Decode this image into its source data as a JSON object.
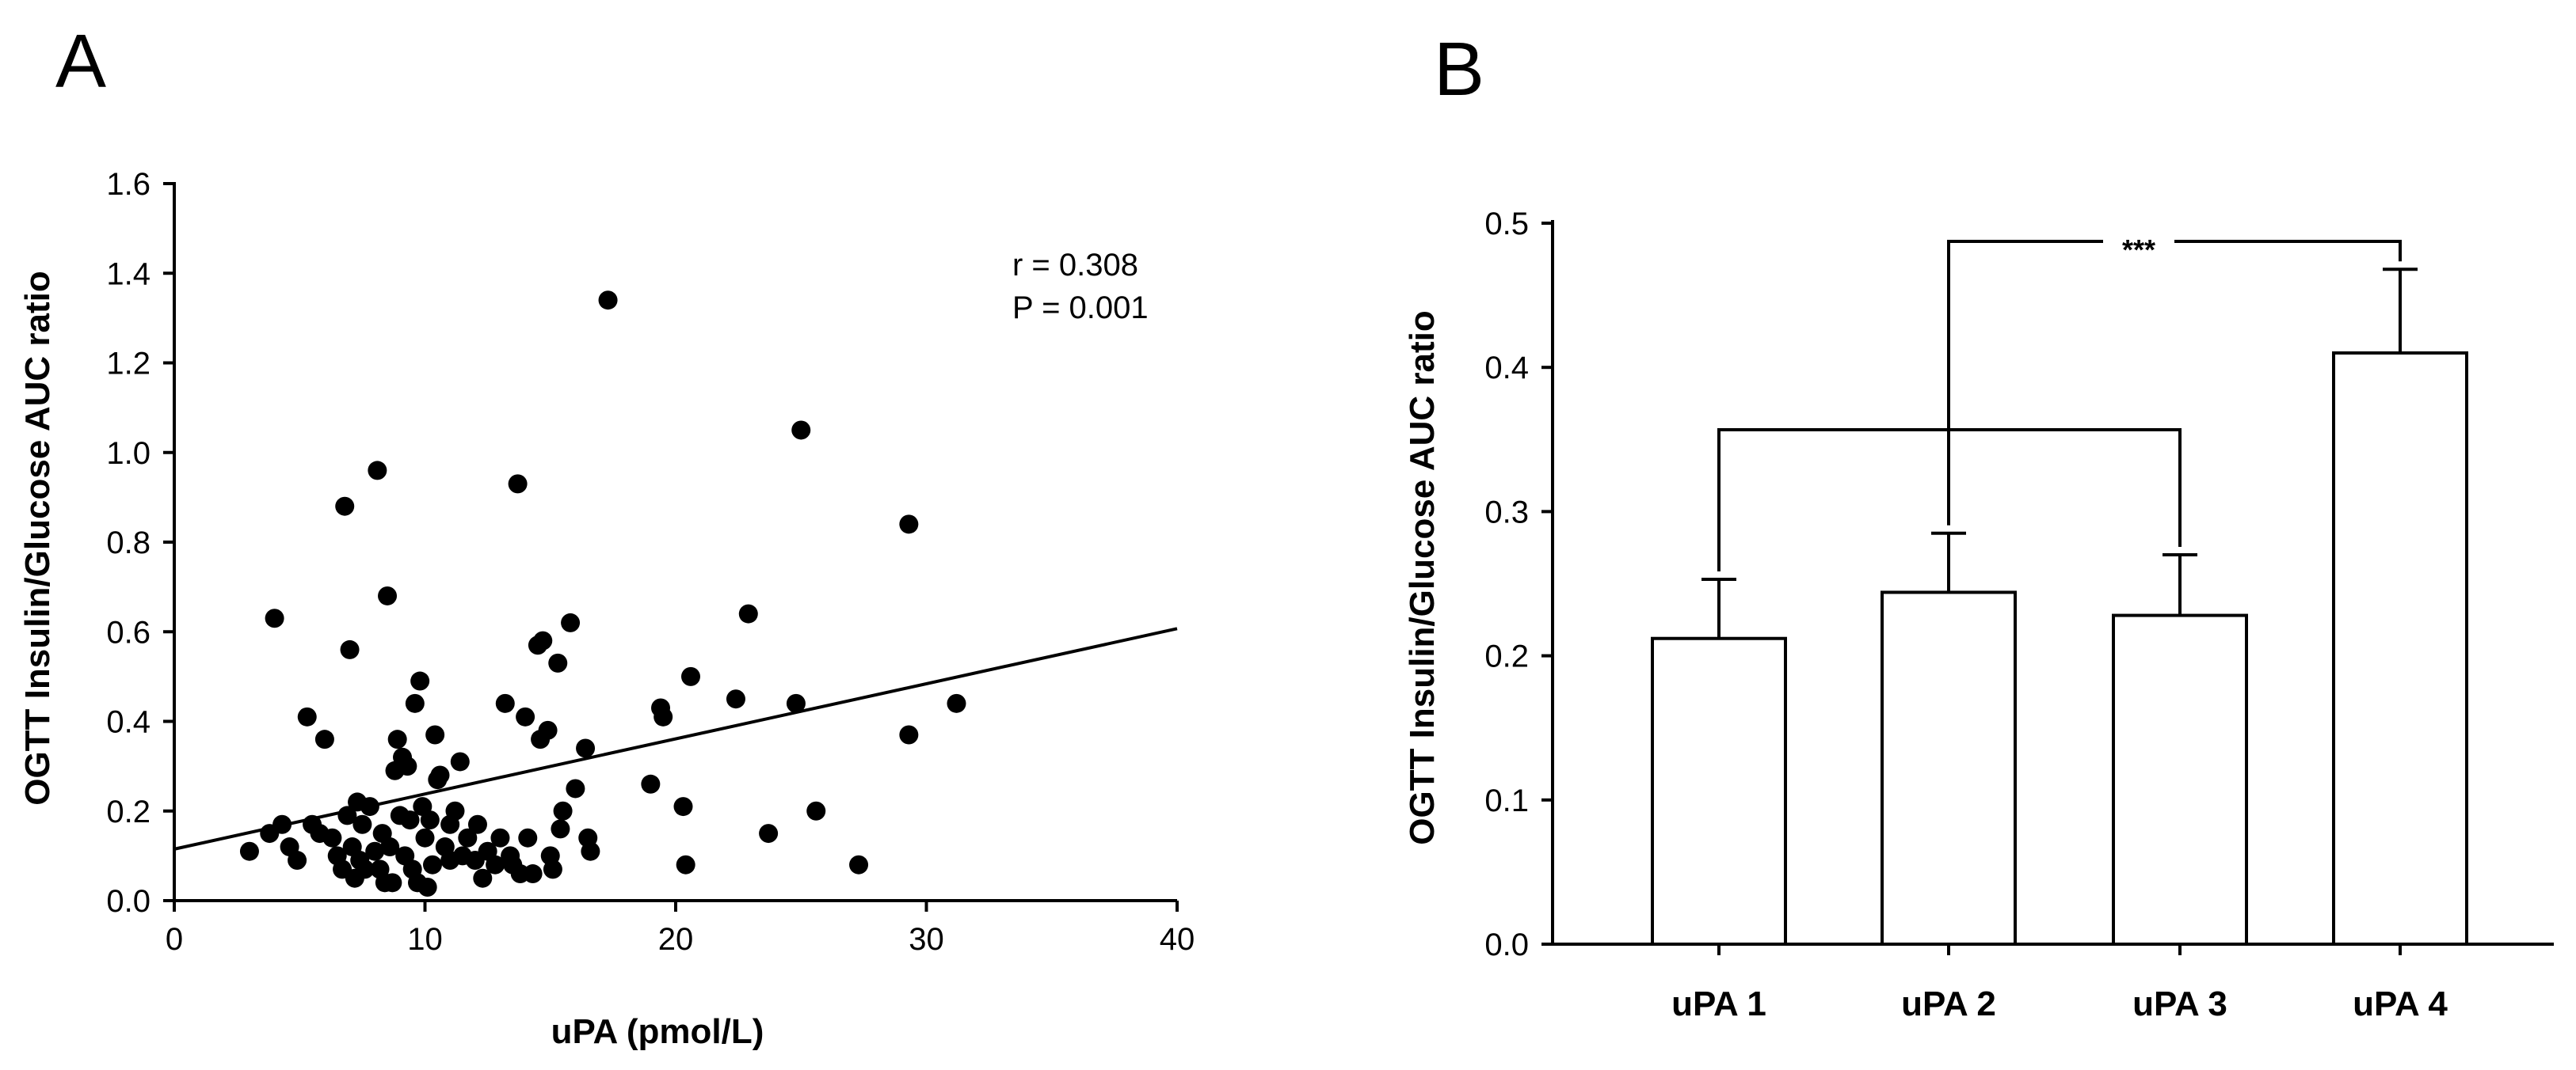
{
  "chart_data": [
    {
      "type": "scatter",
      "panel_label": "A",
      "xlabel": "uPA (pmol/L)",
      "ylabel": "OGTT Insulin/Glucose AUC ratio",
      "xlim": [
        0,
        40
      ],
      "ylim": [
        0,
        1.6
      ],
      "xticks": [
        "0",
        "10",
        "20",
        "30",
        "40"
      ],
      "yticks": [
        "0.0",
        "0.2",
        "0.4",
        "0.6",
        "0.8",
        "1.0",
        "1.2",
        "1.4",
        "1.6"
      ],
      "annotation_r": "r = 0.308",
      "annotation_p": "P = 0.001",
      "fit_line": {
        "intercept": 0.115,
        "slope": 0.0123
      },
      "points": [
        [
          3,
          0.11
        ],
        [
          3.8,
          0.15
        ],
        [
          4,
          0.63
        ],
        [
          4.3,
          0.17
        ],
        [
          4.6,
          0.12
        ],
        [
          4.9,
          0.09
        ],
        [
          5.3,
          0.41
        ],
        [
          5.5,
          0.17
        ],
        [
          5.8,
          0.15
        ],
        [
          6,
          0.36
        ],
        [
          6.3,
          0.14
        ],
        [
          6.5,
          0.1
        ],
        [
          6.7,
          0.07
        ],
        [
          6.8,
          0.88
        ],
        [
          6.9,
          0.19
        ],
        [
          7,
          0.56
        ],
        [
          7.1,
          0.12
        ],
        [
          7.2,
          0.05
        ],
        [
          7.3,
          0.22
        ],
        [
          7.4,
          0.09
        ],
        [
          7.5,
          0.17
        ],
        [
          7.6,
          0.07
        ],
        [
          7.8,
          0.21
        ],
        [
          8,
          0.11
        ],
        [
          8.1,
          0.96
        ],
        [
          8.2,
          0.07
        ],
        [
          8.3,
          0.15
        ],
        [
          8.4,
          0.04
        ],
        [
          8.5,
          0.68
        ],
        [
          8.6,
          0.12
        ],
        [
          8.7,
          0.04
        ],
        [
          8.8,
          0.29
        ],
        [
          8.9,
          0.36
        ],
        [
          9,
          0.19
        ],
        [
          9.1,
          0.32
        ],
        [
          9.2,
          0.1
        ],
        [
          9.3,
          0.3
        ],
        [
          9.4,
          0.18
        ],
        [
          9.5,
          0.07
        ],
        [
          9.6,
          0.44
        ],
        [
          9.7,
          0.04
        ],
        [
          9.8,
          0.49
        ],
        [
          9.9,
          0.21
        ],
        [
          10,
          0.14
        ],
        [
          10.1,
          0.03
        ],
        [
          10.2,
          0.18
        ],
        [
          10.3,
          0.08
        ],
        [
          10.4,
          0.37
        ],
        [
          10.5,
          0.27
        ],
        [
          10.6,
          0.28
        ],
        [
          10.8,
          0.12
        ],
        [
          11,
          0.17
        ],
        [
          11,
          0.09
        ],
        [
          11.2,
          0.2
        ],
        [
          11.4,
          0.31
        ],
        [
          11.5,
          0.1
        ],
        [
          11.7,
          0.14
        ],
        [
          12,
          0.09
        ],
        [
          12.1,
          0.17
        ],
        [
          12.3,
          0.05
        ],
        [
          12.5,
          0.11
        ],
        [
          12.8,
          0.08
        ],
        [
          13,
          0.14
        ],
        [
          13.2,
          0.44
        ],
        [
          13.4,
          0.1
        ],
        [
          13.5,
          0.08
        ],
        [
          13.7,
          0.93
        ],
        [
          13.8,
          0.06
        ],
        [
          14,
          0.41
        ],
        [
          14.1,
          0.14
        ],
        [
          14.3,
          0.06
        ],
        [
          14.5,
          0.57
        ],
        [
          14.6,
          0.36
        ],
        [
          14.7,
          0.58
        ],
        [
          14.9,
          0.38
        ],
        [
          15,
          0.1
        ],
        [
          15.1,
          0.07
        ],
        [
          15.3,
          0.53
        ],
        [
          15.4,
          0.16
        ],
        [
          15.5,
          0.2
        ],
        [
          15.8,
          0.62
        ],
        [
          16,
          0.25
        ],
        [
          16.4,
          0.34
        ],
        [
          16.5,
          0.14
        ],
        [
          16.6,
          0.11
        ],
        [
          17.3,
          1.34
        ],
        [
          19,
          0.26
        ],
        [
          19.4,
          0.43
        ],
        [
          19.5,
          0.41
        ],
        [
          20.3,
          0.21
        ],
        [
          20.4,
          0.08
        ],
        [
          20.6,
          0.5
        ],
        [
          22.4,
          0.45
        ],
        [
          22.9,
          0.64
        ],
        [
          23.7,
          0.15
        ],
        [
          24.8,
          0.44
        ],
        [
          25,
          1.05
        ],
        [
          25.6,
          0.2
        ],
        [
          27.3,
          0.08
        ],
        [
          29.3,
          0.37
        ],
        [
          29.3,
          0.84
        ],
        [
          31.2,
          0.44
        ]
      ]
    },
    {
      "type": "bar",
      "panel_label": "B",
      "ylabel": "OGTT Insulin/Glucose AUC ratio",
      "ylim": [
        0,
        0.5
      ],
      "yticks": [
        "0.0",
        "0.1",
        "0.2",
        "0.3",
        "0.4",
        "0.5"
      ],
      "categories": [
        "uPA 1",
        "uPA 2",
        "uPA 3",
        "uPA 4"
      ],
      "values": [
        0.212,
        0.244,
        0.228,
        0.41
      ],
      "errors": [
        0.041,
        0.041,
        0.042,
        0.058
      ],
      "significance": "***"
    }
  ]
}
